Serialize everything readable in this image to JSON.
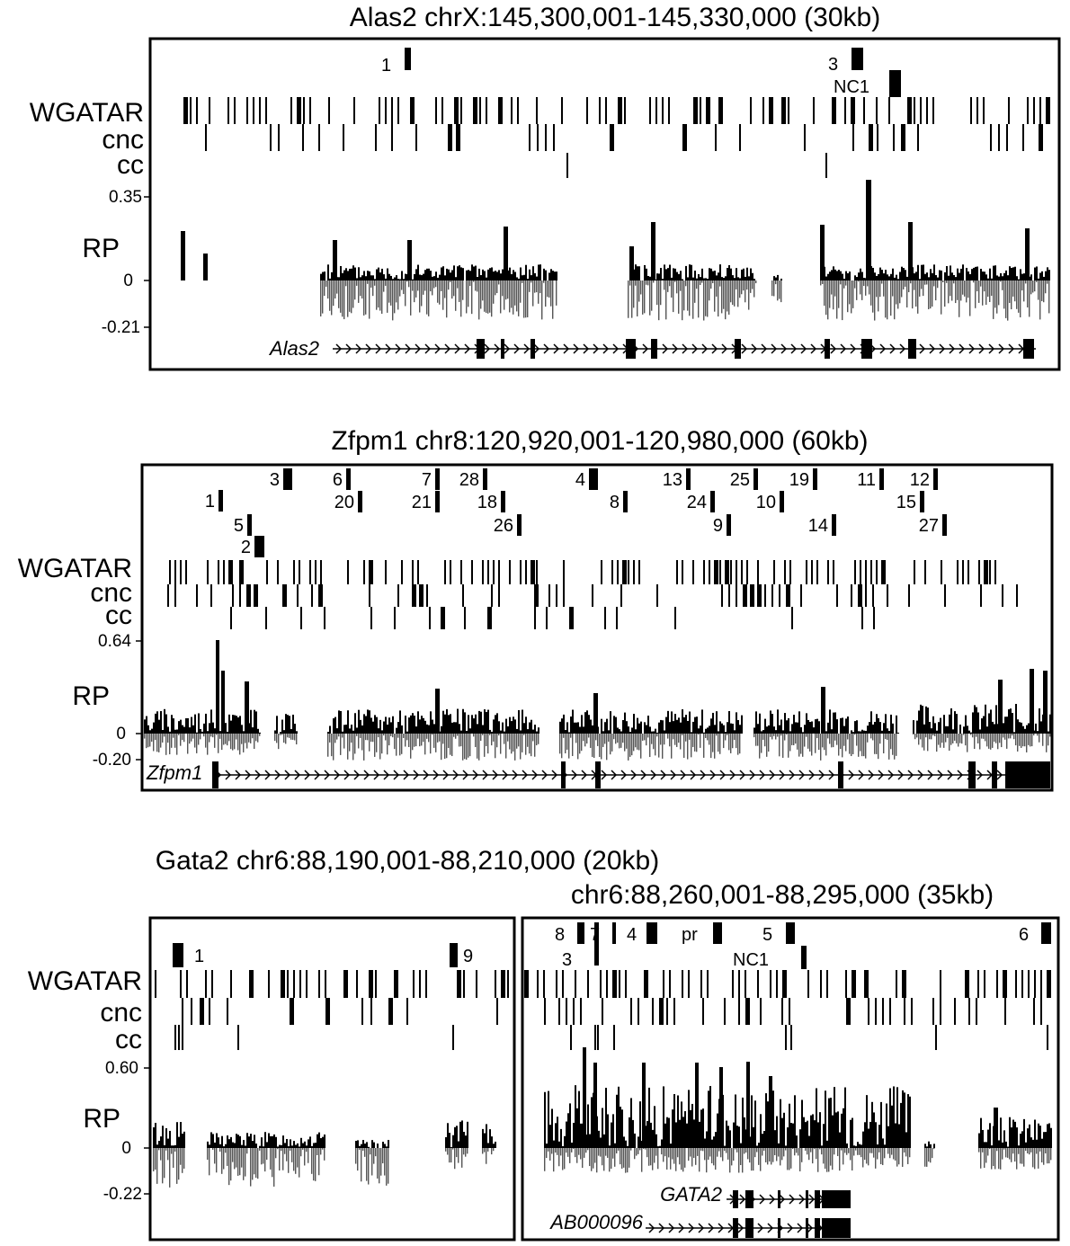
{
  "panels": {
    "alas2": {
      "title": "Alas2 chrX:145,300,001-145,330,000 (30kb)",
      "track_labels": {
        "wgatar": "WGATAR",
        "cnc": "cnc",
        "cc": "cc"
      },
      "rp_label": "RP",
      "rp_max": "0.35",
      "rp_zero": "0",
      "rp_min": "-0.21",
      "gene": "Alas2",
      "markers": [
        "1",
        "3",
        "NC1"
      ]
    },
    "zfpm1": {
      "title": "Zfpm1 chr8:120,920,001-120,980,000 (60kb)",
      "track_labels": {
        "wgatar": "WGATAR",
        "cnc": "cnc",
        "cc": "cc"
      },
      "rp_label": "RP",
      "rp_max": "0.64",
      "rp_zero": "0",
      "rp_min": "-0.20",
      "gene": "Zfpm1",
      "markers": [
        "1",
        "2",
        "3",
        "4",
        "5",
        "6",
        "7",
        "8",
        "9",
        "10",
        "11",
        "12",
        "13",
        "14",
        "15",
        "18",
        "19",
        "20",
        "21",
        "24",
        "25",
        "26",
        "27",
        "28"
      ]
    },
    "gata2": {
      "title_left": "Gata2 chr6:88,190,001-88,210,000 (20kb)",
      "title_right": "chr6:88,260,001-88,295,000 (35kb)",
      "track_labels": {
        "wgatar": "WGATAR",
        "cnc": "cnc",
        "cc": "cc"
      },
      "rp_label": "RP",
      "rp_max": "0.60",
      "rp_zero": "0",
      "rp_min": "-0.22",
      "genes": [
        "GATA2",
        "AB000096"
      ],
      "markers_left": [
        "1",
        "9"
      ],
      "markers_right": [
        "8",
        "3",
        "7",
        "4",
        "pr",
        "5",
        "NC1",
        "6"
      ]
    }
  }
}
